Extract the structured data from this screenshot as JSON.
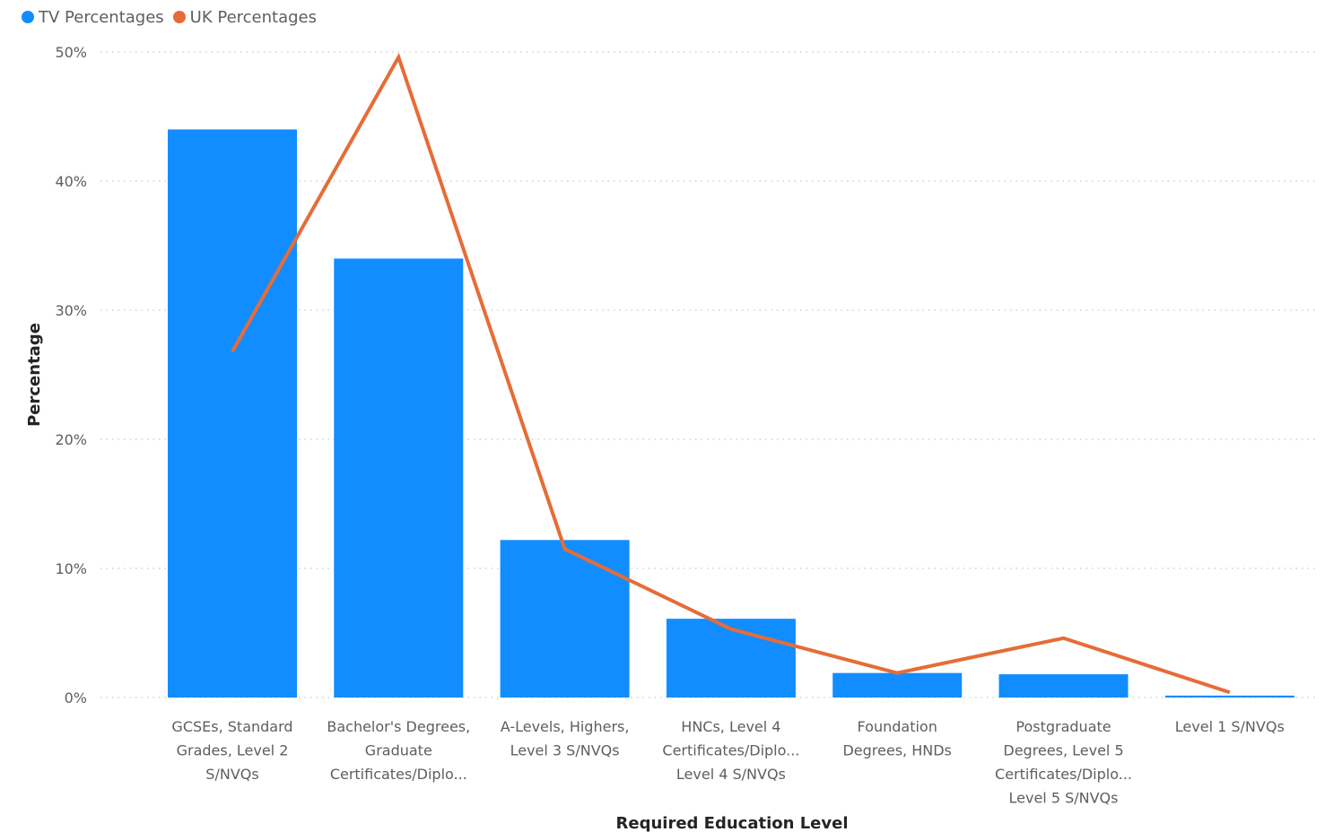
{
  "chart_data": {
    "type": "bar",
    "categories": [
      [
        "GCSEs, Standard",
        "Grades, Level 2",
        "S/NVQs"
      ],
      [
        "Bachelor's Degrees,",
        "Graduate",
        "Certificates/Diplo..."
      ],
      [
        "A-Levels, Highers,",
        "Level 3 S/NVQs"
      ],
      [
        "HNCs, Level 4",
        "Certificates/Diplo...",
        "Level 4 S/NVQs"
      ],
      [
        "Foundation",
        "Degrees, HNDs"
      ],
      [
        "Postgraduate",
        "Degrees, Level 5",
        "Certificates/Diplo...",
        "Level 5 S/NVQs"
      ],
      [
        "Level 1 S/NVQs"
      ]
    ],
    "series": [
      {
        "name": "TV Percentages",
        "kind": "bar",
        "color": "#118dff",
        "values": [
          44.0,
          34.0,
          12.2,
          6.1,
          1.9,
          1.8,
          0.15
        ]
      },
      {
        "name": "UK Percentages",
        "kind": "line",
        "color": "#e66c37",
        "values": [
          26.8,
          49.6,
          11.5,
          5.3,
          1.9,
          4.6,
          0.4
        ]
      }
    ],
    "xlabel": "Required Education Level",
    "ylabel": "Percentage",
    "ylim": [
      0,
      50
    ],
    "yticks": [
      "0%",
      "10%",
      "20%",
      "30%",
      "40%",
      "50%"
    ],
    "grid": true,
    "legend_position": "top-left"
  }
}
